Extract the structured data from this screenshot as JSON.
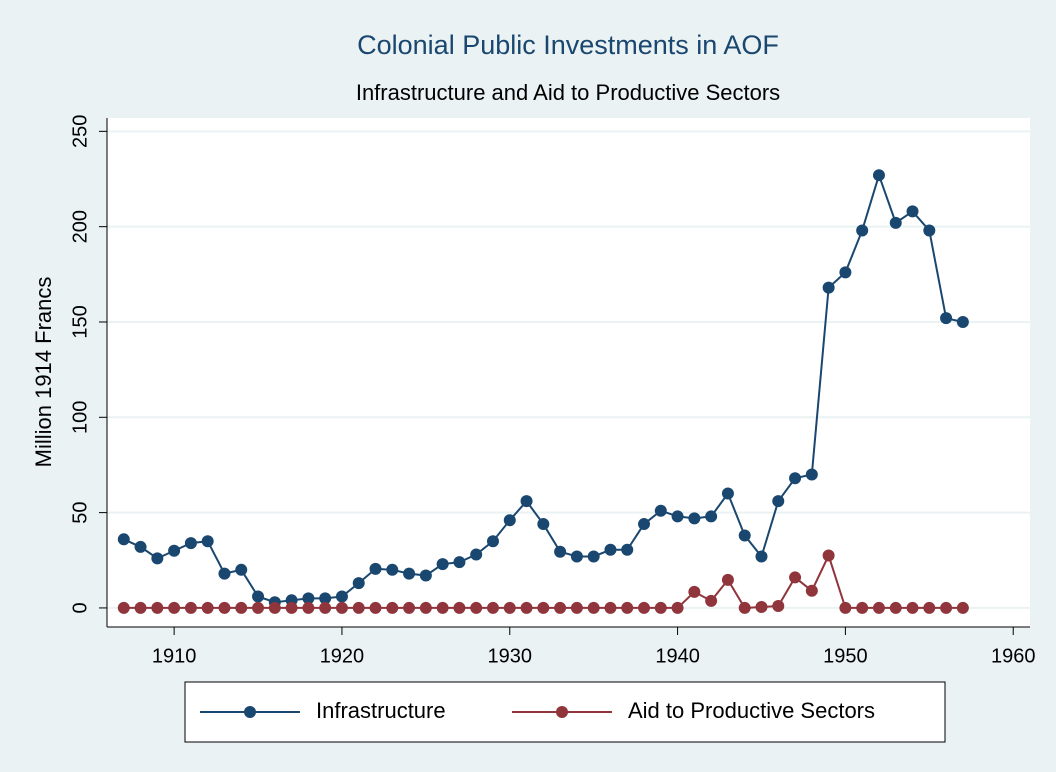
{
  "chart_data": {
    "type": "line",
    "title": "Colonial Public Investments in AOF",
    "subtitle": "Infrastructure and Aid to Productive Sectors",
    "y_label": "Million 1914 Francs",
    "x": [
      1907,
      1908,
      1909,
      1910,
      1911,
      1912,
      1913,
      1914,
      1915,
      1916,
      1917,
      1918,
      1919,
      1920,
      1921,
      1922,
      1923,
      1924,
      1925,
      1926,
      1927,
      1928,
      1929,
      1930,
      1931,
      1932,
      1933,
      1934,
      1935,
      1936,
      1937,
      1938,
      1939,
      1940,
      1941,
      1942,
      1943,
      1944,
      1945,
      1946,
      1947,
      1948,
      1949,
      1950,
      1951,
      1952,
      1953,
      1954,
      1955,
      1956,
      1957
    ],
    "series": [
      {
        "name": "Infrastructure",
        "color": "#1a476f",
        "values": [
          36,
          32,
          26,
          30,
          34,
          35,
          18,
          20,
          6,
          3,
          4,
          5,
          5,
          6,
          13,
          20.5,
          20,
          18,
          17,
          23,
          24,
          28,
          35,
          46,
          56,
          44,
          29.5,
          27,
          27,
          30.5,
          30.5,
          44,
          51,
          48,
          47,
          48,
          60,
          38,
          27,
          56,
          68,
          70,
          168,
          176,
          198,
          227,
          202,
          208,
          198,
          152,
          150
        ]
      },
      {
        "name": "Aid to Productive Sectors",
        "color": "#90353b",
        "values": [
          0,
          0,
          0,
          0,
          0,
          0,
          0,
          0,
          0,
          0,
          0,
          0,
          0,
          0,
          0,
          0,
          0,
          0,
          0,
          0,
          0,
          0,
          0,
          0,
          0,
          0,
          0,
          0,
          0,
          0,
          0,
          0,
          0,
          0,
          8.4,
          3.7,
          14.7,
          0,
          0.5,
          1,
          16,
          9,
          27.5,
          0,
          0,
          0,
          0,
          0,
          0,
          0,
          0
        ]
      }
    ],
    "xlim": [
      1906,
      1961
    ],
    "xticks": [
      1910,
      1920,
      1930,
      1940,
      1950,
      1960
    ],
    "ylim": [
      -10,
      257
    ],
    "yticks": [
      0,
      50,
      100,
      150,
      200,
      250
    ],
    "grid": true,
    "legend": "bottom"
  }
}
